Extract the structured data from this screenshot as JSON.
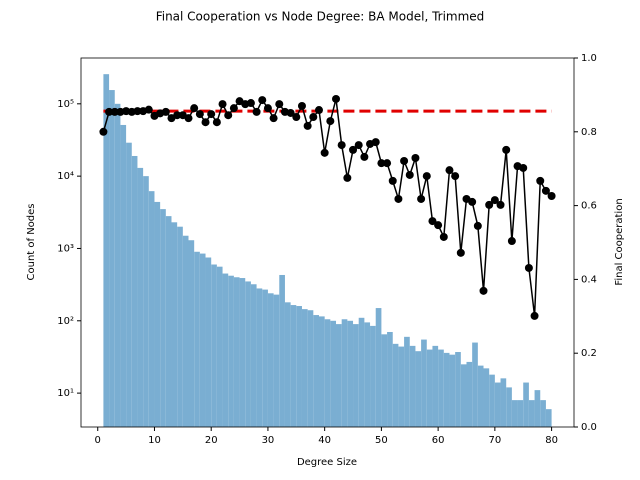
{
  "chart_data": {
    "type": "histogram",
    "title": "Final Cooperation vs Node Degree: BA Model, Trimmed",
    "xlabel": "Degree Size",
    "ylabel": "Count of Nodes",
    "y2label": "Final Cooperation",
    "color": "#7aaed2",
    "yscale": "log",
    "bins": [
      1,
      2,
      3,
      4,
      5,
      6,
      7,
      8,
      9,
      10,
      11,
      12,
      13,
      14,
      15,
      16,
      17,
      18,
      19,
      20,
      21,
      22,
      23,
      24,
      25,
      26,
      27,
      28,
      29,
      30,
      31,
      32,
      33,
      34,
      35,
      36,
      37,
      38,
      39,
      40,
      41,
      42,
      43,
      44,
      45,
      46,
      47,
      48,
      49,
      50,
      51,
      52,
      53,
      54,
      55,
      56,
      57,
      58,
      59,
      60,
      61,
      62,
      63,
      64,
      65,
      66,
      67,
      68,
      69,
      70,
      71,
      72,
      73,
      74,
      75,
      76,
      77,
      78,
      79,
      80
    ],
    "values": [
      257000,
      155000,
      100000,
      51000,
      29000,
      19000,
      13000,
      10000,
      6200,
      4400,
      3500,
      2800,
      2300,
      2000,
      1500,
      1300,
      900,
      850,
      750,
      600,
      560,
      450,
      420,
      400,
      390,
      350,
      320,
      280,
      270,
      240,
      230,
      430,
      180,
      165,
      160,
      145,
      140,
      120,
      115,
      105,
      100,
      90,
      105,
      100,
      90,
      110,
      95,
      85,
      150,
      65,
      70,
      48,
      44,
      60,
      45,
      38,
      55,
      40,
      45,
      40,
      36,
      34,
      37,
      25,
      27,
      50,
      24,
      22,
      18,
      14,
      16,
      12,
      8,
      8,
      14,
      8,
      11,
      8,
      6
    ],
    "xlim": [
      -2.95,
      83.95
    ],
    "xticks": [
      0,
      10,
      20,
      30,
      40,
      50,
      60,
      70,
      80
    ],
    "ylim": [
      3.4,
      430000
    ],
    "yticks": [
      {
        "value": 10,
        "label": "10¹"
      },
      {
        "value": 100,
        "label": "10²"
      },
      {
        "value": 1000,
        "label": "10³"
      },
      {
        "value": 10000,
        "label": "10⁴"
      },
      {
        "value": 100000,
        "label": "10⁵"
      }
    ],
    "y2lim": [
      0,
      1
    ],
    "y2ticks": [
      {
        "value": 0,
        "label": "0.0"
      },
      0.2,
      0.4,
      0.6,
      0.8,
      {
        "value": 1,
        "label": "1.0"
      }
    ],
    "series": [
      {
        "type": "line",
        "axis": "y2",
        "color": "#000000",
        "x": [
          1,
          2,
          3,
          4,
          5,
          6,
          7,
          8,
          9,
          10,
          11,
          12,
          13,
          14,
          15,
          16,
          17,
          18,
          19,
          20,
          21,
          22,
          23,
          24,
          25,
          26,
          27,
          28,
          29,
          30,
          31,
          32,
          33,
          34,
          35,
          36,
          37,
          38,
          39,
          40,
          41,
          42,
          43,
          44,
          45,
          46,
          47,
          48,
          49,
          50,
          51,
          52,
          53,
          54,
          55,
          56,
          57,
          58,
          59,
          60,
          61,
          62,
          63,
          64,
          65,
          66,
          67,
          68,
          69,
          70,
          71,
          72,
          73,
          74,
          75,
          76,
          77,
          78,
          79,
          80
        ],
        "values": [
          0.8,
          0.854,
          0.854,
          0.854,
          0.856,
          0.854,
          0.856,
          0.856,
          0.86,
          0.843,
          0.85,
          0.854,
          0.837,
          0.845,
          0.845,
          0.837,
          0.864,
          0.848,
          0.826,
          0.848,
          0.826,
          0.875,
          0.845,
          0.864,
          0.883,
          0.875,
          0.878,
          0.854,
          0.886,
          0.864,
          0.837,
          0.875,
          0.854,
          0.851,
          0.84,
          0.87,
          0.816,
          0.84,
          0.859,
          0.743,
          0.829,
          0.889,
          0.764,
          0.675,
          0.751,
          0.764,
          0.732,
          0.767,
          0.772,
          0.715,
          0.715,
          0.667,
          0.618,
          0.721,
          0.683,
          0.729,
          0.618,
          0.68,
          0.558,
          0.547,
          0.515,
          0.696,
          0.68,
          0.472,
          0.618,
          0.61,
          0.545,
          0.369,
          0.602,
          0.615,
          0.602,
          0.751,
          0.504,
          0.707,
          0.702,
          0.431,
          0.301,
          0.667,
          0.64,
          0.626
        ]
      }
    ],
    "hline": {
      "y": 0.856,
      "xrange": [
        1,
        80
      ],
      "color": "#e00000"
    }
  }
}
